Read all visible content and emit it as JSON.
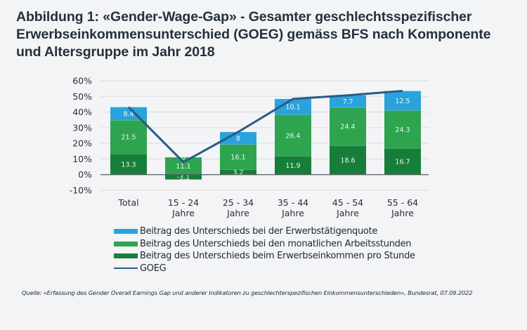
{
  "title": "Abbildung 1: «Gender-Wage-Gap» - Gesamter geschlechtsspezifischer Erwerbseinkommensunterschied (GOEG) gemäss BFS nach Komponente und Altersgruppe im Jahr 2018",
  "source": "Quelle: «Erfassung des Gender Overall Earnings Gap und anderer Indikatoren zu geschlechterspezifischen Einkommensunterschieden», Bundesrat, 07.09.2022",
  "colors": {
    "erwerbstaetigenquote": "#2aa3dc",
    "arbeitsstunden": "#2ea44f",
    "erwerbseinkommen": "#177e3a",
    "goeg": "#2c5a86",
    "grid": "#dfe1e4",
    "zero_line": "#555a60"
  },
  "chart_data": {
    "type": "bar",
    "stacked": true,
    "title": "Gesamter geschlechtsspezifischer Erwerbseinkommensunterschied (GOEG) gemäss BFS nach Komponente und Altersgruppe im Jahr 2018",
    "xlabel": "",
    "ylabel": "",
    "ylim": [
      -10,
      60
    ],
    "yticks": [
      60,
      50,
      40,
      30,
      20,
      10,
      0,
      -10
    ],
    "ytick_labels": [
      "60%",
      "50%",
      "40%",
      "30%",
      "20%",
      "10%",
      "0%",
      "-10%"
    ],
    "grid": true,
    "legend_position": "bottom",
    "categories": [
      [
        "Total"
      ],
      [
        "15  - 24",
        "Jahre"
      ],
      [
        "25 - 34",
        "Jahre"
      ],
      [
        "35 - 44",
        "Jahre"
      ],
      [
        "45 - 54",
        "Jahre"
      ],
      [
        "55 - 64",
        "Jahre"
      ]
    ],
    "series": [
      {
        "key": "erwerbseinkommen",
        "name": "Beitrag des Unterschieds beim Erwerbseinkommen pro Stunde",
        "values": [
          13.3,
          -3.1,
          3.2,
          11.9,
          18.6,
          16.7
        ],
        "labels": [
          "13.3",
          "-3.1",
          "3.2",
          "11.9",
          "18.6",
          "16.7"
        ]
      },
      {
        "key": "arbeitsstunden",
        "name": "Beitrag des Unterschieds bei den monatlichen Arbeitsstunden",
        "values": [
          21.5,
          11.1,
          16.1,
          26.4,
          24.4,
          24.3
        ],
        "labels": [
          "21.5",
          "11.1",
          "16.1",
          "26.4",
          "24.4",
          "24.3"
        ]
      },
      {
        "key": "erwerbstaetigenquote",
        "name": "Beitrag des Unterschieds bei der Erwerbstätigenquote",
        "values": [
          8.4,
          0,
          8,
          10.1,
          7.7,
          12.5
        ],
        "labels": [
          "8.4",
          "0",
          "8",
          "10.1",
          "7.7",
          "12.5"
        ]
      }
    ],
    "line": {
      "key": "goeg",
      "name": "GOEG",
      "values": [
        43.2,
        8.0,
        27.3,
        48.4,
        50.7,
        53.5
      ]
    },
    "legend": [
      {
        "key": "erwerbstaetigenquote",
        "label": "Beitrag des Unterschieds bei der Erwerbstätigenquote",
        "kind": "bar"
      },
      {
        "key": "arbeitsstunden",
        "label": "Beitrag des Unterschieds bei den monatlichen Arbeitsstunden",
        "kind": "bar"
      },
      {
        "key": "erwerbseinkommen",
        "label": "Beitrag des Unterschieds beim Erwerbseinkommen pro Stunde",
        "kind": "bar"
      },
      {
        "key": "goeg",
        "label": "GOEG",
        "kind": "line"
      }
    ]
  }
}
